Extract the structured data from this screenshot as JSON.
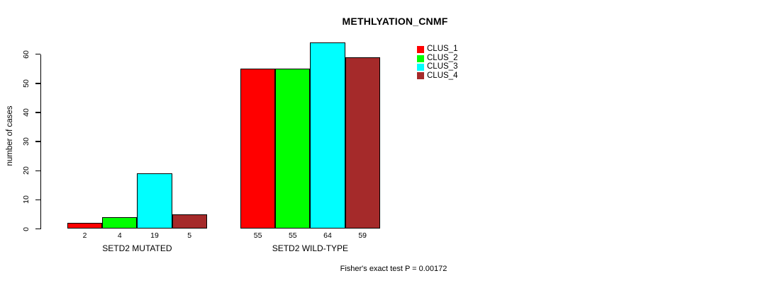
{
  "chart_data": {
    "type": "bar",
    "title": "METHLYATION_CNMF",
    "ylabel": "number of cases",
    "xlabel": "",
    "yticks": [
      0,
      10,
      20,
      30,
      40,
      50,
      60
    ],
    "ylim": [
      0,
      64
    ],
    "grid": false,
    "legend_position": "top-right",
    "bar_value_labels_shown": true,
    "series": [
      {
        "name": "CLUS_1",
        "color": "#ff0000"
      },
      {
        "name": "CLUS_2",
        "color": "#00ff00"
      },
      {
        "name": "CLUS_3",
        "color": "#00ffff"
      },
      {
        "name": "CLUS_4",
        "color": "#a52a2a"
      }
    ],
    "groups": [
      {
        "label": "SETD2 MUTATED",
        "values": [
          2,
          4,
          19,
          5
        ]
      },
      {
        "label": "SETD2 WILD-TYPE",
        "values": [
          55,
          55,
          64,
          59
        ]
      }
    ],
    "annotation": "Fisher's exact test P = 0.00172"
  }
}
